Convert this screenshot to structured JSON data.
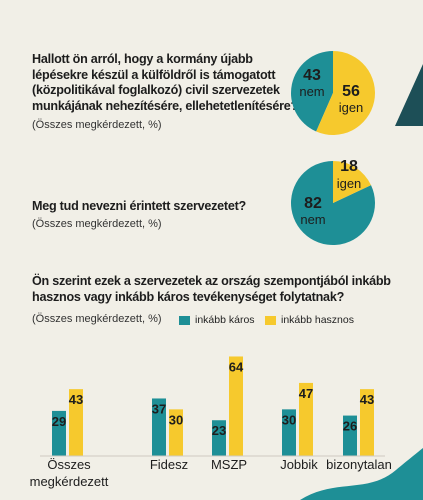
{
  "colors": {
    "teal": "#1e8f96",
    "yellow": "#f6c92d",
    "dark": "#1d4f57",
    "bg": "#f1efe7"
  },
  "chart_data": [
    {
      "type": "pie",
      "title_lines": [
        "Hallott ön arról, hogy a kormány újabb",
        "lépésekre készül a külföldről is támogatott",
        "(közpolitikával foglalkozó) civil szervezetek",
        "munkájának nehezítésére, ellehetetlenítésére?"
      ],
      "subtitle": "(Összes megkérdezett, %)",
      "slices": [
        {
          "label": "nem",
          "value": 43,
          "color": "#1e8f96"
        },
        {
          "label": "igen",
          "value": 56,
          "color": "#f6c92d"
        }
      ]
    },
    {
      "type": "pie",
      "title_lines": [
        "Meg tud nevezni érintett szervezetet?"
      ],
      "subtitle": "(Összes megkérdezett, %)",
      "slices": [
        {
          "label": "nem",
          "value": 82,
          "color": "#1e8f96"
        },
        {
          "label": "igen",
          "value": 18,
          "color": "#f6c92d"
        }
      ]
    },
    {
      "type": "bar",
      "title_lines": [
        "Ön szerint ezek a szervezetek az ország szempontjából inkább",
        "hasznos vagy inkább káros tevékenységet folytatnak?"
      ],
      "subtitle": "(Összes megkérdezett, %)",
      "categories": [
        "Összes megkérdezett",
        "Fidesz",
        "MSZP",
        "Jobbik",
        "bizonytalan"
      ],
      "series": [
        {
          "name": "inkább káros",
          "color": "#1e8f96",
          "values": [
            29,
            37,
            23,
            30,
            26
          ]
        },
        {
          "name": "inkább hasznos",
          "color": "#f6c92d",
          "values": [
            43,
            30,
            64,
            47,
            43
          ]
        }
      ],
      "legend_position": "top-right",
      "grid": false
    }
  ]
}
